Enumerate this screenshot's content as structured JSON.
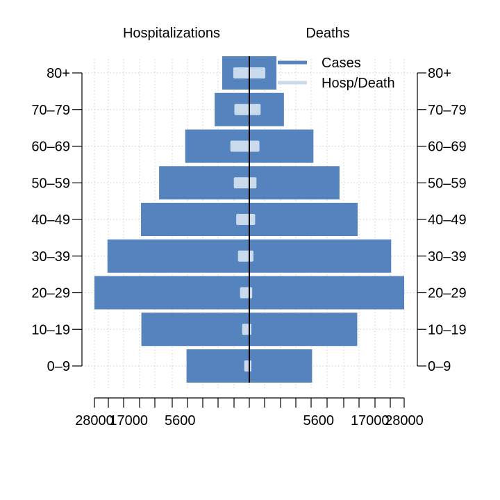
{
  "chart_data": {
    "type": "bar",
    "orientation": "horizontal",
    "layout": "population-pyramid",
    "panel_titles": {
      "left": "Hospitalizations",
      "right": "Deaths"
    },
    "categories": [
      "0–9",
      "10–19",
      "20–29",
      "30–39",
      "40–49",
      "50–59",
      "60–69",
      "70–79",
      "80+"
    ],
    "x_tick_labels": [
      "28000",
      "17000",
      "5600",
      "5600",
      "17000",
      "28000"
    ],
    "x_scale": "sqrt",
    "x_max": 28000,
    "grid": true,
    "legend": {
      "position": "top-right",
      "entries": [
        "Cases",
        "Hosp/Death"
      ]
    },
    "colors": {
      "cases": "#5583bd",
      "outcome": "#c9daec",
      "axis": "#000000",
      "grid": "#cccccc"
    },
    "series": [
      {
        "name": "Cases",
        "side": "left",
        "values": [
          4600,
          13600,
          28000,
          23500,
          13700,
          9500,
          4800,
          1400,
          860
        ]
      },
      {
        "name": "Hosp/Death",
        "side": "left",
        "values": [
          30,
          60,
          100,
          150,
          200,
          280,
          420,
          260,
          300
        ]
      },
      {
        "name": "Cases",
        "side": "right",
        "values": [
          4600,
          13600,
          28000,
          23500,
          13700,
          9500,
          4800,
          1400,
          860
        ]
      },
      {
        "name": "Hosp/Death",
        "side": "right",
        "values": [
          2,
          3,
          10,
          20,
          40,
          60,
          120,
          150,
          300
        ]
      }
    ]
  }
}
